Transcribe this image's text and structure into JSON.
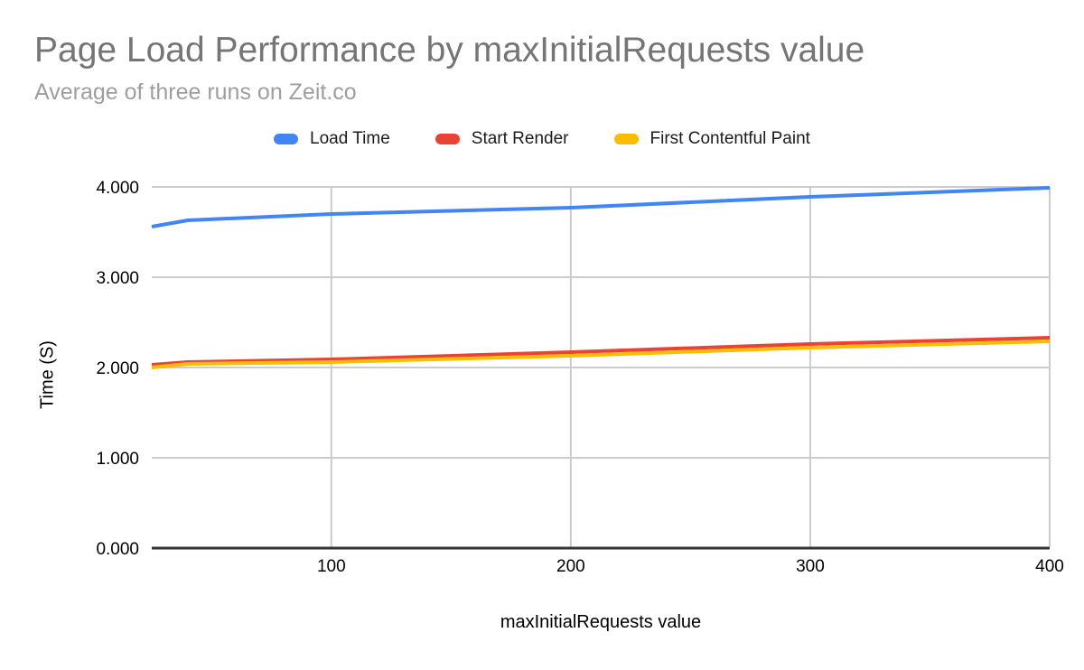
{
  "chart_data": {
    "type": "line",
    "title": "Page Load Performance by maxInitialRequests value",
    "subtitle": "Average of three runs on Zeit.co",
    "xlabel": "maxInitialRequests value",
    "ylabel": "Time (S)",
    "xlim": [
      25,
      400
    ],
    "ylim": [
      0,
      4
    ],
    "x_ticks": [
      100,
      200,
      300,
      400
    ],
    "y_ticks": [
      0,
      1,
      2,
      3,
      4
    ],
    "y_tick_labels": [
      "0.000",
      "1.000",
      "2.000",
      "3.000",
      "4.000"
    ],
    "grid": true,
    "legend_position": "top",
    "x": [
      25,
      40,
      100,
      200,
      300,
      400
    ],
    "series": [
      {
        "name": "Load Time",
        "color": "#4285f4",
        "values": [
          3.56,
          3.63,
          3.7,
          3.77,
          3.89,
          3.99
        ]
      },
      {
        "name": "Start Render",
        "color": "#ea4335",
        "values": [
          2.03,
          2.06,
          2.09,
          2.17,
          2.26,
          2.33
        ]
      },
      {
        "name": "First Contentful Paint",
        "color": "#fbbc04",
        "values": [
          2.0,
          2.04,
          2.06,
          2.13,
          2.22,
          2.29
        ]
      }
    ],
    "colors": {
      "title": "#757575",
      "subtitle": "#9e9e9e",
      "gridline": "#cccccc",
      "axis_line": "#333333",
      "tick_label": "#000000",
      "background": "#ffffff"
    }
  }
}
